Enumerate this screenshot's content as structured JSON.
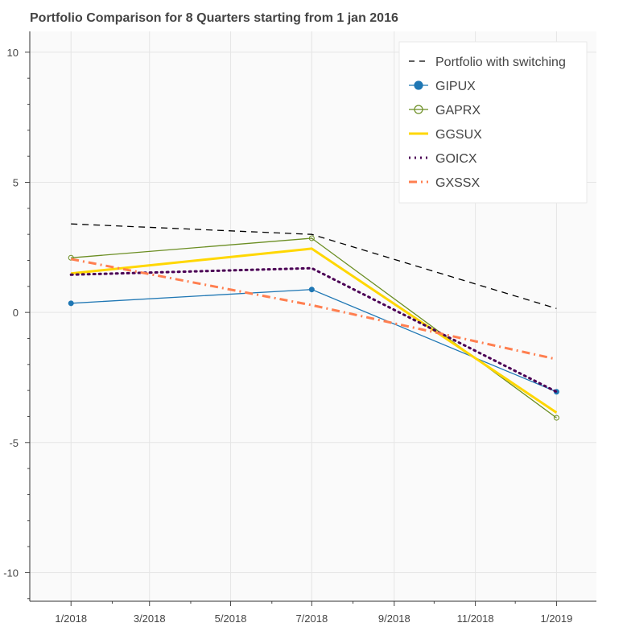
{
  "chart_data": {
    "type": "line",
    "title": "Portfolio Comparison for 8 Quarters starting from 1 jan 2016",
    "xlabel": "",
    "ylabel": "",
    "x_ticks": [
      "1/2018",
      "3/2018",
      "5/2018",
      "7/2018",
      "9/2018",
      "11/2018",
      "1/2019"
    ],
    "x_range": [
      "2017-12-01",
      "2019-01-31"
    ],
    "y_ticks": [
      10,
      5,
      0,
      -5,
      -10
    ],
    "ylim": [
      -11.1,
      10.8
    ],
    "grid": true,
    "legend_position": "top-right",
    "series": [
      {
        "name": "Portfolio with switching",
        "color": "#000000",
        "dash": "dashed",
        "marker": "none",
        "points": [
          {
            "x": "2018-01-01",
            "y": 3.4
          },
          {
            "x": "2018-07-01",
            "y": 3.0
          },
          {
            "x": "2019-01-01",
            "y": 0.15
          }
        ]
      },
      {
        "name": "GIPUX",
        "color": "#1f77b4",
        "dash": "solid",
        "marker": "filled-circle",
        "points": [
          {
            "x": "2018-01-01",
            "y": 0.35
          },
          {
            "x": "2018-07-01",
            "y": 0.88
          },
          {
            "x": "2019-01-01",
            "y": -3.05
          }
        ]
      },
      {
        "name": "GAPRX",
        "color": "#6b8e23",
        "dash": "solid",
        "marker": "hollow-circle",
        "points": [
          {
            "x": "2018-01-01",
            "y": 2.1
          },
          {
            "x": "2018-07-01",
            "y": 2.85
          },
          {
            "x": "2019-01-01",
            "y": -4.05
          }
        ]
      },
      {
        "name": "GGSUX",
        "color": "#ffd700",
        "dash": "solid",
        "marker": "none",
        "points": [
          {
            "x": "2018-01-01",
            "y": 1.5
          },
          {
            "x": "2018-07-01",
            "y": 2.45
          },
          {
            "x": "2019-01-01",
            "y": -3.85
          }
        ]
      },
      {
        "name": "GOICX",
        "color": "#4b0055",
        "dash": "dotted",
        "marker": "none",
        "points": [
          {
            "x": "2018-01-01",
            "y": 1.45
          },
          {
            "x": "2018-07-01",
            "y": 1.7
          },
          {
            "x": "2019-01-01",
            "y": -3.05
          }
        ]
      },
      {
        "name": "GXSSX",
        "color": "#ff7f50",
        "dash": "dashdot",
        "marker": "none",
        "points": [
          {
            "x": "2018-01-01",
            "y": 2.05
          },
          {
            "x": "2018-07-01",
            "y": 0.28
          },
          {
            "x": "2019-01-01",
            "y": -1.8
          }
        ]
      }
    ]
  }
}
